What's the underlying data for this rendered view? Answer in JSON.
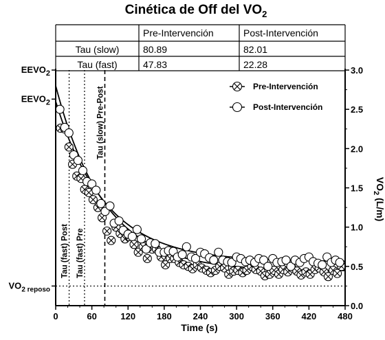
{
  "chart_data": {
    "type": "scatter",
    "title": "Cinética de Off del VO",
    "title_sub": "2",
    "xlabel": "Time (s)",
    "ylabel": "VO",
    "ylabel_sub": "2",
    "ylabel_suffix": " (L/m)",
    "xlim": [
      0,
      480
    ],
    "ylim": [
      0,
      3.0
    ],
    "x_ticks": [
      "0",
      "60",
      "120",
      "180",
      "240",
      "300",
      "360",
      "420",
      "480"
    ],
    "y_ticks": [
      "0.0",
      "0.5",
      "1.0",
      "1.5",
      "2.0",
      "2.5",
      "3.0"
    ],
    "grid": false,
    "legend_position": "top-right",
    "left_labels": [
      {
        "main": "EEVO",
        "sub": "2",
        "y": 3.0
      },
      {
        "main": "EEVO",
        "sub": "2",
        "y": 2.63
      },
      {
        "main": "VO",
        "sub": "2 reposo",
        "y": 0.25
      }
    ],
    "table": {
      "header": [
        "",
        "Pre-Intervención",
        "Post-Intervención"
      ],
      "rows": [
        [
          "Tau (slow)",
          "80.89",
          "82.01"
        ],
        [
          "Tau (fast)",
          "47.83",
          "22.28"
        ]
      ]
    },
    "reference_lines": [
      {
        "label": "Tau (fast) Post",
        "x": 22.28,
        "style": "dotted"
      },
      {
        "label": "Tau (fast) Pre",
        "x": 47.83,
        "style": "dotted"
      },
      {
        "label": "Tau (slow) Pre-Post",
        "x": 81.5,
        "style": "dashed"
      },
      {
        "label": "",
        "y": 0.25,
        "style": "dotted"
      }
    ],
    "series": [
      {
        "name": "Pre-Intervención",
        "marker": "circle-x",
        "fit": {
          "baseline": 0.44,
          "amplitude": 2.36,
          "tau": 80.89
        },
        "points": [
          [
            8,
            2.26
          ],
          [
            15,
            2.25
          ],
          [
            22,
            2.02
          ],
          [
            28,
            1.8
          ],
          [
            35,
            1.65
          ],
          [
            42,
            1.62
          ],
          [
            48,
            1.48
          ],
          [
            55,
            1.44
          ],
          [
            62,
            1.35
          ],
          [
            70,
            1.25
          ],
          [
            77,
            1.12
          ],
          [
            85,
            0.95
          ],
          [
            92,
            0.83
          ],
          [
            100,
            1.0
          ],
          [
            107,
            0.92
          ],
          [
            115,
            0.85
          ],
          [
            122,
            0.88
          ],
          [
            130,
            0.78
          ],
          [
            137,
            0.68
          ],
          [
            145,
            0.75
          ],
          [
            152,
            0.6
          ],
          [
            160,
            0.72
          ],
          [
            167,
            0.72
          ],
          [
            175,
            0.62
          ],
          [
            182,
            0.52
          ],
          [
            190,
            0.6
          ],
          [
            197,
            0.6
          ],
          [
            205,
            0.55
          ],
          [
            212,
            0.52
          ],
          [
            220,
            0.5
          ],
          [
            227,
            0.47
          ],
          [
            235,
            0.52
          ],
          [
            242,
            0.48
          ],
          [
            250,
            0.45
          ],
          [
            257,
            0.42
          ],
          [
            265,
            0.45
          ],
          [
            272,
            0.5
          ],
          [
            280,
            0.48
          ],
          [
            287,
            0.4
          ],
          [
            295,
            0.44
          ],
          [
            302,
            0.45
          ],
          [
            310,
            0.42
          ],
          [
            317,
            0.45
          ],
          [
            325,
            0.5
          ],
          [
            332,
            0.46
          ],
          [
            340,
            0.44
          ],
          [
            347,
            0.38
          ],
          [
            355,
            0.4
          ],
          [
            362,
            0.45
          ],
          [
            370,
            0.4
          ],
          [
            377,
            0.46
          ],
          [
            385,
            0.43
          ],
          [
            392,
            0.48
          ],
          [
            400,
            0.44
          ],
          [
            407,
            0.39
          ],
          [
            415,
            0.43
          ],
          [
            422,
            0.4
          ],
          [
            430,
            0.46
          ],
          [
            437,
            0.48
          ],
          [
            445,
            0.43
          ],
          [
            452,
            0.37
          ],
          [
            460,
            0.45
          ],
          [
            467,
            0.41
          ],
          [
            474,
            0.5
          ]
        ]
      },
      {
        "name": "Post-Intervención",
        "marker": "circle",
        "fit": {
          "baseline": 0.56,
          "amplitude": 2.04,
          "tau": 82.01
        },
        "points": [
          [
            7,
            2.5
          ],
          [
            15,
            2.27
          ],
          [
            22,
            2.2
          ],
          [
            30,
            1.92
          ],
          [
            37,
            1.85
          ],
          [
            45,
            1.72
          ],
          [
            52,
            1.58
          ],
          [
            60,
            1.55
          ],
          [
            67,
            1.47
          ],
          [
            75,
            1.3
          ],
          [
            82,
            1.2
          ],
          [
            90,
            1.27
          ],
          [
            97,
            1.05
          ],
          [
            105,
            1.08
          ],
          [
            112,
            0.96
          ],
          [
            120,
            0.91
          ],
          [
            127,
            0.88
          ],
          [
            135,
            0.97
          ],
          [
            142,
            0.85
          ],
          [
            150,
            0.72
          ],
          [
            157,
            0.8
          ],
          [
            165,
            0.79
          ],
          [
            172,
            0.68
          ],
          [
            180,
            0.68
          ],
          [
            187,
            0.7
          ],
          [
            195,
            0.69
          ],
          [
            202,
            0.62
          ],
          [
            210,
            0.65
          ],
          [
            217,
            0.75
          ],
          [
            225,
            0.62
          ],
          [
            232,
            0.6
          ],
          [
            240,
            0.68
          ],
          [
            247,
            0.66
          ],
          [
            255,
            0.61
          ],
          [
            262,
            0.58
          ],
          [
            270,
            0.68
          ],
          [
            277,
            0.58
          ],
          [
            285,
            0.56
          ],
          [
            292,
            0.55
          ],
          [
            300,
            0.62
          ],
          [
            307,
            0.6
          ],
          [
            315,
            0.56
          ],
          [
            322,
            0.58
          ],
          [
            330,
            0.55
          ],
          [
            337,
            0.6
          ],
          [
            345,
            0.58
          ],
          [
            352,
            0.5
          ],
          [
            360,
            0.6
          ],
          [
            367,
            0.55
          ],
          [
            375,
            0.56
          ],
          [
            382,
            0.58
          ],
          [
            390,
            0.5
          ],
          [
            397,
            0.58
          ],
          [
            405,
            0.55
          ],
          [
            412,
            0.6
          ],
          [
            420,
            0.62
          ],
          [
            427,
            0.56
          ],
          [
            435,
            0.54
          ],
          [
            442,
            0.52
          ],
          [
            450,
            0.62
          ],
          [
            457,
            0.55
          ],
          [
            464,
            0.58
          ],
          [
            471,
            0.55
          ]
        ]
      }
    ]
  }
}
